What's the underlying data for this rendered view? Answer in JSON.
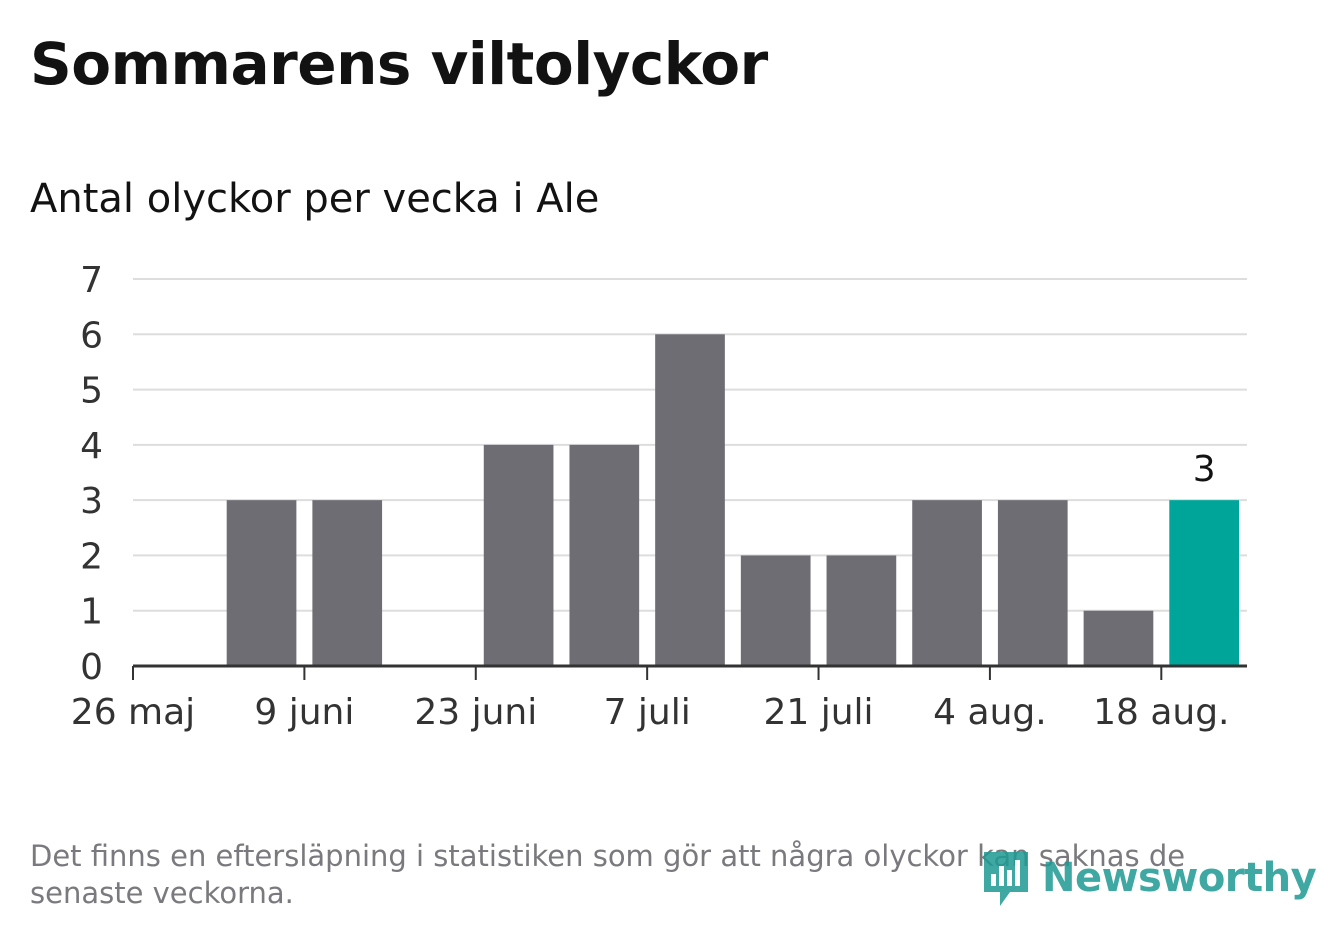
{
  "title": "Sommarens viltolyckor",
  "subtitle": "Antal olyckor per vecka i Ale",
  "note": "Det finns en eftersläpning i statistiken som gör att några olyckor kan saknas de senaste veckorna.",
  "logo": {
    "text": "Newsworthy",
    "icon": "bar-chart-speech-bubble-icon"
  },
  "colors": {
    "bar": "#6e6d73",
    "highlight": "#00a59a",
    "grid": "#dddddd",
    "axis": "#333333",
    "text": "#333333"
  },
  "chart_data": {
    "type": "bar",
    "title": "Sommarens viltolyckor",
    "subtitle": "Antal olyckor per vecka i Ale",
    "ylim": [
      0,
      7
    ],
    "yticks": [
      0,
      1,
      2,
      3,
      4,
      5,
      6,
      7
    ],
    "xticks": [
      "26 maj",
      "9 juni",
      "23 juni",
      "7 juli",
      "21 juli",
      "4 aug.",
      "18 aug."
    ],
    "weeks": [
      "26 maj",
      "2 juni",
      "9 juni",
      "16 juni",
      "23 juni",
      "30 juni",
      "7 juli",
      "14 juli",
      "21 juli",
      "28 juli",
      "4 aug.",
      "11 aug.",
      "18 aug."
    ],
    "values": [
      null,
      3,
      3,
      0,
      4,
      4,
      6,
      2,
      2,
      3,
      3,
      1,
      3
    ],
    "highlight_index": 12,
    "highlight_label": "3",
    "grid": true
  }
}
